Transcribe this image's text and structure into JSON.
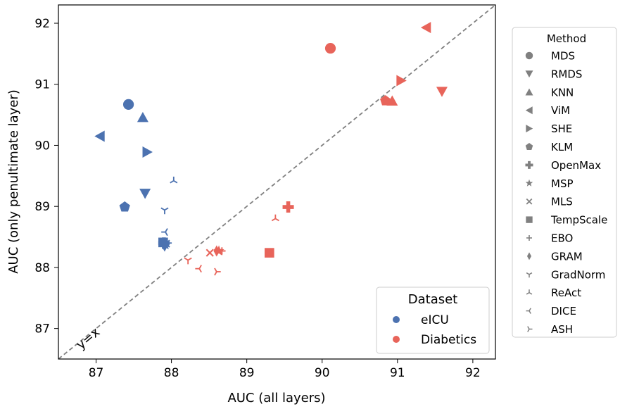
{
  "chart_data": {
    "type": "scatter",
    "xlabel": "AUC (all layers)",
    "ylabel": "AUC (only penultimate layer)",
    "xlim": [
      86.5,
      92.3
    ],
    "ylim": [
      86.5,
      92.3
    ],
    "xticks": [
      87,
      88,
      89,
      90,
      91,
      92
    ],
    "yticks": [
      87,
      88,
      89,
      90,
      91,
      92
    ],
    "grid": false,
    "diagonal": {
      "label": "y=x",
      "style": "dashed",
      "color": "#808080"
    },
    "dataset_legend": {
      "title": "Dataset",
      "placement": "lower-right",
      "entries": [
        {
          "name": "eICU",
          "color": "#4c72b0"
        },
        {
          "name": "Diabetics",
          "color": "#e8645a"
        }
      ]
    },
    "method_legend": {
      "title": "Method",
      "placement": "outside-right",
      "color": "#808080",
      "entries": [
        {
          "name": "MDS",
          "marker": "circle"
        },
        {
          "name": "RMDS",
          "marker": "triangle-down"
        },
        {
          "name": "KNN",
          "marker": "triangle-up"
        },
        {
          "name": "ViM",
          "marker": "triangle-left"
        },
        {
          "name": "SHE",
          "marker": "triangle-right"
        },
        {
          "name": "KLM",
          "marker": "pentagon"
        },
        {
          "name": "OpenMax",
          "marker": "plus-filled"
        },
        {
          "name": "MSP",
          "marker": "star"
        },
        {
          "name": "MLS",
          "marker": "x"
        },
        {
          "name": "TempScale",
          "marker": "square"
        },
        {
          "name": "EBO",
          "marker": "plus"
        },
        {
          "name": "GRAM",
          "marker": "thin-diamond"
        },
        {
          "name": "GradNorm",
          "marker": "tri-down"
        },
        {
          "name": "ReAct",
          "marker": "tri-up"
        },
        {
          "name": "DICE",
          "marker": "tri-left"
        },
        {
          "name": "ASH",
          "marker": "tri-right"
        }
      ]
    },
    "series": [
      {
        "name": "eICU",
        "color": "#4c72b0",
        "points": [
          {
            "method": "MDS",
            "x": 87.43,
            "y": 90.67
          },
          {
            "method": "RMDS",
            "x": 87.65,
            "y": 89.21
          },
          {
            "method": "KNN",
            "x": 87.62,
            "y": 90.46
          },
          {
            "method": "ViM",
            "x": 87.05,
            "y": 90.15
          },
          {
            "method": "SHE",
            "x": 87.68,
            "y": 89.89
          },
          {
            "method": "KLM",
            "x": 87.38,
            "y": 88.99
          },
          {
            "method": "OpenMax",
            "x": 87.9,
            "y": 88.4
          },
          {
            "method": "MSP",
            "x": 87.92,
            "y": 88.37
          },
          {
            "method": "MLS",
            "x": 87.93,
            "y": 88.39
          },
          {
            "method": "TempScale",
            "x": 87.89,
            "y": 88.41
          },
          {
            "method": "EBO",
            "x": 87.92,
            "y": 88.36
          },
          {
            "method": "GRAM",
            "x": 87.91,
            "y": 88.35
          },
          {
            "method": "GradNorm",
            "x": 87.91,
            "y": 88.94
          },
          {
            "method": "ReAct",
            "x": 88.03,
            "y": 89.42
          },
          {
            "method": "DICE",
            "x": 87.92,
            "y": 88.58
          },
          {
            "method": "ASH",
            "x": 87.95,
            "y": 88.4
          }
        ]
      },
      {
        "name": "Diabetics",
        "color": "#e8645a",
        "points": [
          {
            "method": "MDS",
            "x": 90.11,
            "y": 91.59
          },
          {
            "method": "RMDS",
            "x": 91.59,
            "y": 90.88
          },
          {
            "method": "KNN",
            "x": 90.93,
            "y": 90.73
          },
          {
            "method": "ViM",
            "x": 91.38,
            "y": 91.93
          },
          {
            "method": "SHE",
            "x": 91.05,
            "y": 91.06
          },
          {
            "method": "KLM",
            "x": 90.84,
            "y": 90.73
          },
          {
            "method": "OpenMax",
            "x": 89.55,
            "y": 88.99
          },
          {
            "method": "MSP",
            "x": 88.63,
            "y": 88.27
          },
          {
            "method": "MLS",
            "x": 88.51,
            "y": 88.24
          },
          {
            "method": "TempScale",
            "x": 89.3,
            "y": 88.24
          },
          {
            "method": "EBO",
            "x": 88.67,
            "y": 88.27
          },
          {
            "method": "GRAM",
            "x": 88.6,
            "y": 88.27
          },
          {
            "method": "GradNorm",
            "x": 88.22,
            "y": 88.12
          },
          {
            "method": "ReAct",
            "x": 89.38,
            "y": 88.8
          },
          {
            "method": "DICE",
            "x": 88.37,
            "y": 87.98
          },
          {
            "method": "ASH",
            "x": 88.6,
            "y": 87.93
          }
        ]
      }
    ]
  }
}
